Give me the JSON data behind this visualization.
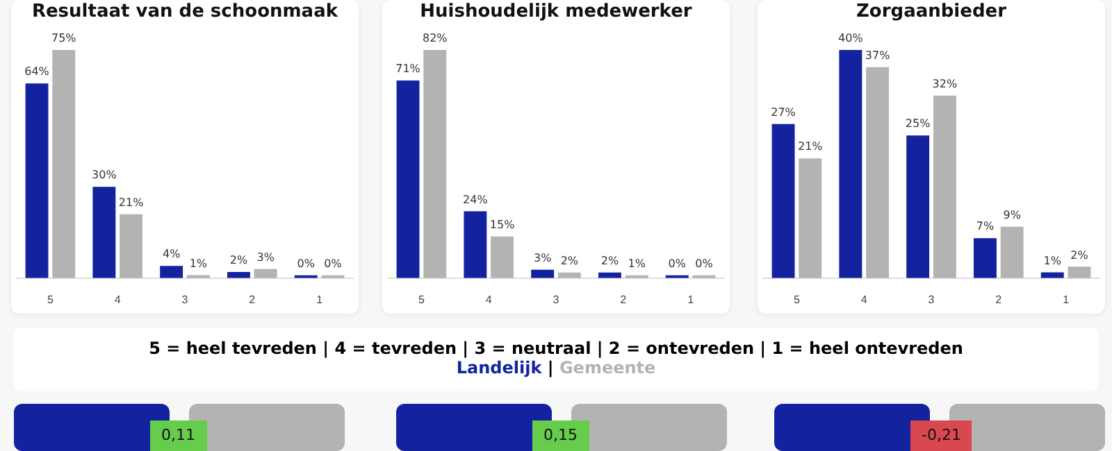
{
  "chart_data": [
    {
      "type": "bar",
      "title": "Resultaat van de schoonmaak",
      "categories": [
        "5",
        "4",
        "3",
        "2",
        "1"
      ],
      "series": [
        {
          "name": "Landelijk",
          "color": "#13239f",
          "values": [
            64,
            30,
            4,
            2,
            0
          ],
          "value_labels": [
            "64%",
            "30%",
            "4%",
            "2%",
            "0%"
          ]
        },
        {
          "name": "Gemeente",
          "color": "#b3b3b3",
          "values": [
            75,
            21,
            1,
            3,
            0
          ],
          "value_labels": [
            "75%",
            "21%",
            "1%",
            "3%",
            "0%"
          ]
        }
      ]
    },
    {
      "type": "bar",
      "title": "Huishoudelijk medewerker",
      "categories": [
        "5",
        "4",
        "3",
        "2",
        "1"
      ],
      "series": [
        {
          "color": "#13239f",
          "values": [
            71,
            24,
            3,
            2,
            0
          ],
          "value_labels": [
            "71%",
            "24%",
            "3%",
            "2%",
            "0%"
          ]
        },
        {
          "color": "#b3b3b3",
          "values": [
            82,
            15,
            2,
            1,
            0
          ],
          "value_labels": [
            "82%",
            "15%",
            "2%",
            "1%",
            "0%"
          ]
        }
      ]
    },
    {
      "type": "bar",
      "title": "Zorgaanbieder",
      "categories": [
        "5",
        "4",
        "3",
        "2",
        "1"
      ],
      "series": [
        {
          "color": "#13239f",
          "values": [
            27,
            40,
            25,
            7,
            1
          ],
          "value_labels": [
            "27%",
            "40%",
            "25%",
            "7%",
            "1%"
          ]
        },
        {
          "color": "#b3b3b3",
          "values": [
            21,
            37,
            32,
            9,
            2
          ],
          "value_labels": [
            "21%",
            "37%",
            "32%",
            "9%",
            "2%"
          ]
        }
      ]
    },
    {
      "type": "other",
      "annotations": [
        "5 = heel tevreden | 4 = tevreden | 3 = neutraal | 2 = ontevreden | 1 = heel ontevreden",
        "|",
        "0,11",
        "0,15",
        "-0,21"
      ]
    }
  ]
}
